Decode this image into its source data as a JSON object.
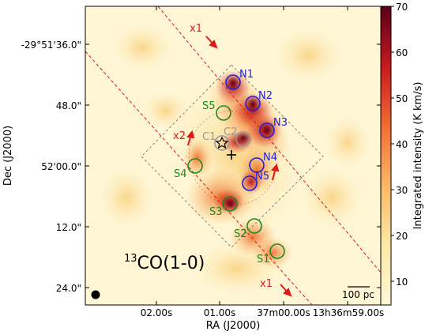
{
  "axes": {
    "ra_ticks": [
      "02.00s",
      "01.00s",
      "37m00.00s",
      "13h36m59.00s"
    ],
    "dec_ticks": [
      "-29°51'36.0\"",
      "48.0\"",
      "52'00.0\"",
      "12.0\"",
      "24.0\""
    ],
    "xlabel": "RA (J2000)",
    "ylabel": "Dec (J2000)"
  },
  "colorbar": {
    "label": "Integrated intensity (K km/s)",
    "ticks": [
      "70",
      "60",
      "50",
      "40",
      "30",
      "20",
      "10"
    ],
    "range": [
      5,
      70
    ]
  },
  "map": {
    "title_prefix": "13",
    "title_main": "CO(1-0)",
    "scalebar": "100 pc",
    "labels": {
      "n1": "N1",
      "n2": "N2",
      "n3": "N3",
      "n4": "N4",
      "n5": "N5",
      "s1": "S1",
      "s2": "S2",
      "s3": "S3",
      "s4": "S4",
      "s5": "S5",
      "c1": "C1",
      "c2": "C2",
      "x1a": "x1",
      "x1b": "x1",
      "x2": "x2"
    },
    "colors": {
      "north": "#1f1fd6",
      "south": "#1e8a1e",
      "bar": "#e01818",
      "center": "#9a9a9a"
    }
  }
}
